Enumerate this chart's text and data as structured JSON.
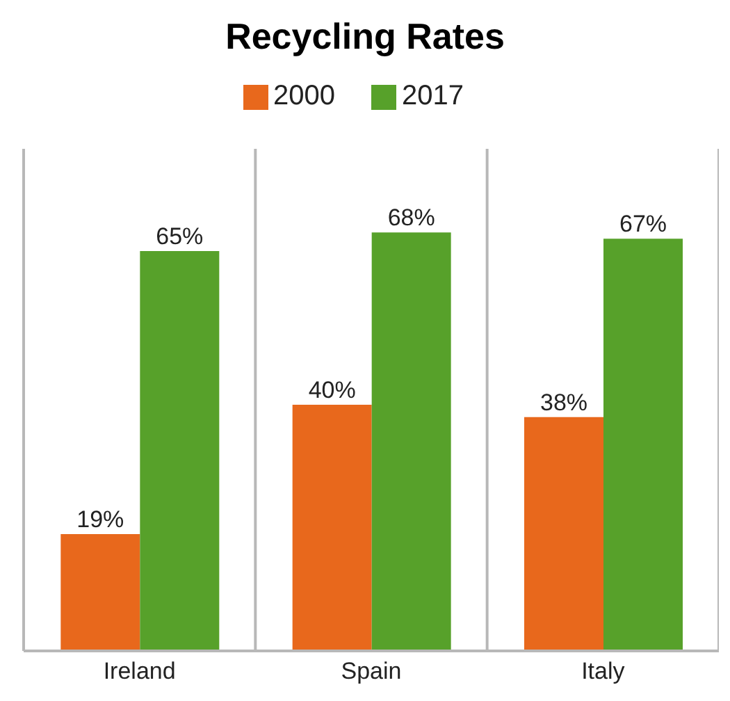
{
  "chart_data": {
    "type": "bar",
    "title": "Recycling Rates",
    "categories": [
      "Ireland",
      "Spain",
      "Italy"
    ],
    "series": [
      {
        "name": "2000",
        "color": "#e8681c",
        "values": [
          19,
          40,
          38
        ],
        "value_labels": [
          "19%",
          "40%",
          "38%"
        ]
      },
      {
        "name": "2017",
        "color": "#57a12a",
        "values": [
          65,
          68,
          67
        ],
        "value_labels": [
          "65%",
          "68%",
          "67%"
        ]
      }
    ],
    "grid": "x",
    "legend": "top"
  }
}
